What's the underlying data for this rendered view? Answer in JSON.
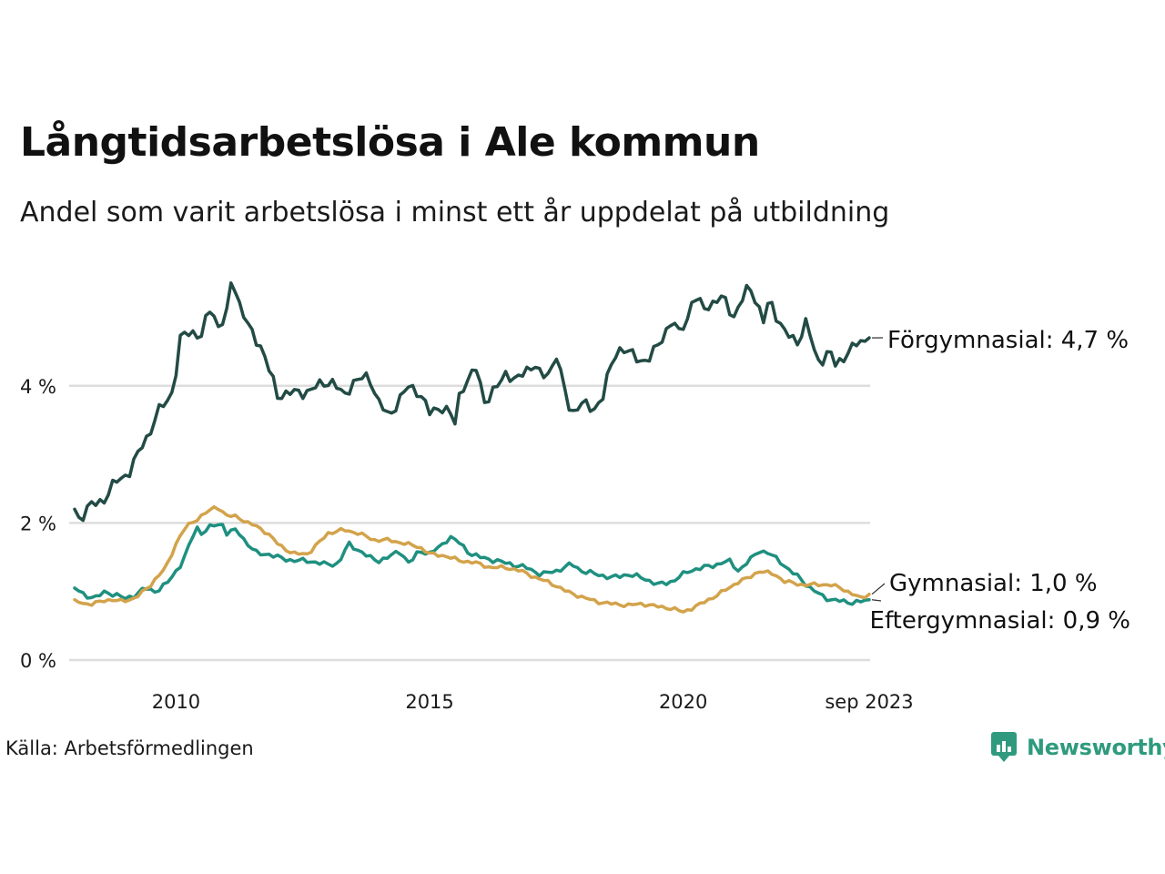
{
  "title": "Långtidsarbetslösa i Ale kommun",
  "subtitle": "Andel som varit arbetslösa i minst ett år uppdelat på utbildning",
  "source": "Källa: Arbetsförmedlingen",
  "brand": {
    "name": "Newsworthy",
    "icon": "bar-chart-speech-icon",
    "color": "#2f9a7e"
  },
  "chart_data": {
    "type": "line",
    "title": "Långtidsarbetslösa i Ale kommun",
    "xlabel": "",
    "ylabel": "",
    "x_start": 2008.0,
    "x_end": 2023.6667,
    "ylim": [
      0,
      6
    ],
    "y_ticks": [
      {
        "value": 0,
        "label": "0 %"
      },
      {
        "value": 2,
        "label": "2 %"
      },
      {
        "value": 4,
        "label": "4 %"
      }
    ],
    "x_ticks": [
      {
        "value": 2010,
        "label": "2010"
      },
      {
        "value": 2015,
        "label": "2015"
      },
      {
        "value": 2020,
        "label": "2020"
      },
      {
        "value": 2023.6667,
        "label": "sep 2023"
      }
    ],
    "grid": true,
    "series": [
      {
        "name": "Förgymnasial",
        "end_label": "Förgymnasial: 4,7 %",
        "color": "#234b45",
        "anchors": [
          [
            2008.0,
            2.2
          ],
          [
            2008.1,
            2.05
          ],
          [
            2008.3,
            2.25
          ],
          [
            2008.6,
            2.35
          ],
          [
            2008.8,
            2.6
          ],
          [
            2009.1,
            2.75
          ],
          [
            2009.3,
            3.1
          ],
          [
            2009.5,
            3.35
          ],
          [
            2009.7,
            3.7
          ],
          [
            2009.9,
            3.85
          ],
          [
            2010.0,
            4.2
          ],
          [
            2010.1,
            4.75
          ],
          [
            2010.3,
            4.8
          ],
          [
            2010.5,
            4.7
          ],
          [
            2010.6,
            5.0
          ],
          [
            2010.7,
            5.2
          ],
          [
            2010.8,
            4.85
          ],
          [
            2010.9,
            4.9
          ],
          [
            2011.0,
            5.05
          ],
          [
            2011.1,
            5.6
          ],
          [
            2011.25,
            5.2
          ],
          [
            2011.4,
            4.9
          ],
          [
            2011.55,
            4.7
          ],
          [
            2011.7,
            4.55
          ],
          [
            2011.8,
            4.3
          ],
          [
            2011.9,
            4.1
          ],
          [
            2012.0,
            3.85
          ],
          [
            2012.2,
            3.9
          ],
          [
            2012.5,
            3.9
          ],
          [
            2012.7,
            3.95
          ],
          [
            2012.9,
            4.05
          ],
          [
            2013.1,
            4.05
          ],
          [
            2013.3,
            3.85
          ],
          [
            2013.5,
            4.05
          ],
          [
            2013.8,
            4.15
          ],
          [
            2014.0,
            3.75
          ],
          [
            2014.2,
            3.55
          ],
          [
            2014.4,
            3.8
          ],
          [
            2014.6,
            4.0
          ],
          [
            2014.8,
            3.9
          ],
          [
            2015.0,
            3.6
          ],
          [
            2015.2,
            3.7
          ],
          [
            2015.4,
            3.6
          ],
          [
            2015.5,
            3.45
          ],
          [
            2015.6,
            3.95
          ],
          [
            2015.8,
            4.1
          ],
          [
            2015.9,
            4.3
          ],
          [
            2016.1,
            3.75
          ],
          [
            2016.3,
            3.95
          ],
          [
            2016.5,
            4.2
          ],
          [
            2016.7,
            4.05
          ],
          [
            2016.9,
            4.25
          ],
          [
            2017.1,
            4.3
          ],
          [
            2017.2,
            4.1
          ],
          [
            2017.4,
            4.25
          ],
          [
            2017.5,
            4.45
          ],
          [
            2017.7,
            3.8
          ],
          [
            2017.8,
            3.6
          ],
          [
            2018.0,
            3.75
          ],
          [
            2018.2,
            3.65
          ],
          [
            2018.4,
            3.8
          ],
          [
            2018.5,
            4.1
          ],
          [
            2018.7,
            4.55
          ],
          [
            2018.9,
            4.5
          ],
          [
            2019.1,
            4.4
          ],
          [
            2019.3,
            4.35
          ],
          [
            2019.5,
            4.6
          ],
          [
            2019.7,
            4.85
          ],
          [
            2019.8,
            4.95
          ],
          [
            2019.9,
            4.75
          ],
          [
            2020.0,
            4.9
          ],
          [
            2020.1,
            5.0
          ],
          [
            2020.2,
            5.3
          ],
          [
            2020.4,
            5.15
          ],
          [
            2020.6,
            5.2
          ],
          [
            2020.8,
            5.3
          ],
          [
            2021.0,
            5.0
          ],
          [
            2021.2,
            5.3
          ],
          [
            2021.3,
            5.5
          ],
          [
            2021.5,
            5.1
          ],
          [
            2021.6,
            4.9
          ],
          [
            2021.7,
            5.3
          ],
          [
            2021.9,
            4.9
          ],
          [
            2022.1,
            4.7
          ],
          [
            2022.3,
            4.65
          ],
          [
            2022.4,
            4.95
          ],
          [
            2022.5,
            4.75
          ],
          [
            2022.6,
            4.45
          ],
          [
            2022.7,
            4.35
          ],
          [
            2022.9,
            4.5
          ],
          [
            2023.0,
            4.3
          ],
          [
            2023.2,
            4.45
          ],
          [
            2023.4,
            4.6
          ],
          [
            2023.6667,
            4.7
          ]
        ]
      },
      {
        "name": "Gymnasial",
        "end_label": "Gymnasial: 1,0 %",
        "color": "#d3a34b",
        "anchors": [
          [
            2008.0,
            0.88
          ],
          [
            2008.3,
            0.8
          ],
          [
            2008.6,
            0.88
          ],
          [
            2008.9,
            0.86
          ],
          [
            2009.2,
            0.9
          ],
          [
            2009.5,
            1.1
          ],
          [
            2009.8,
            1.35
          ],
          [
            2010.0,
            1.7
          ],
          [
            2010.2,
            1.95
          ],
          [
            2010.4,
            2.05
          ],
          [
            2010.6,
            2.15
          ],
          [
            2010.8,
            2.25
          ],
          [
            2011.0,
            2.1
          ],
          [
            2011.2,
            2.1
          ],
          [
            2011.4,
            2.0
          ],
          [
            2011.6,
            1.95
          ],
          [
            2011.8,
            1.85
          ],
          [
            2012.0,
            1.7
          ],
          [
            2012.3,
            1.55
          ],
          [
            2012.6,
            1.55
          ],
          [
            2012.8,
            1.7
          ],
          [
            2013.0,
            1.85
          ],
          [
            2013.3,
            1.9
          ],
          [
            2013.6,
            1.85
          ],
          [
            2013.9,
            1.75
          ],
          [
            2014.2,
            1.75
          ],
          [
            2014.5,
            1.7
          ],
          [
            2014.8,
            1.65
          ],
          [
            2015.0,
            1.55
          ],
          [
            2015.3,
            1.52
          ],
          [
            2015.6,
            1.45
          ],
          [
            2015.9,
            1.42
          ],
          [
            2016.2,
            1.35
          ],
          [
            2016.5,
            1.35
          ],
          [
            2016.8,
            1.3
          ],
          [
            2017.1,
            1.2
          ],
          [
            2017.4,
            1.12
          ],
          [
            2017.7,
            1.0
          ],
          [
            2018.0,
            0.92
          ],
          [
            2018.3,
            0.85
          ],
          [
            2018.6,
            0.82
          ],
          [
            2018.9,
            0.8
          ],
          [
            2019.2,
            0.82
          ],
          [
            2019.5,
            0.78
          ],
          [
            2019.8,
            0.75
          ],
          [
            2020.0,
            0.7
          ],
          [
            2020.3,
            0.8
          ],
          [
            2020.6,
            0.92
          ],
          [
            2020.9,
            1.05
          ],
          [
            2021.1,
            1.15
          ],
          [
            2021.3,
            1.2
          ],
          [
            2021.5,
            1.3
          ],
          [
            2021.8,
            1.25
          ],
          [
            2022.0,
            1.15
          ],
          [
            2022.3,
            1.1
          ],
          [
            2022.6,
            1.1
          ],
          [
            2022.9,
            1.1
          ],
          [
            2023.1,
            1.05
          ],
          [
            2023.3,
            0.98
          ],
          [
            2023.5,
            0.9
          ],
          [
            2023.6667,
            0.96
          ]
        ]
      },
      {
        "name": "Eftergymnasial",
        "end_label": "Eftergymnasial: 0,9 %",
        "color": "#1f9080",
        "anchors": [
          [
            2008.0,
            1.05
          ],
          [
            2008.2,
            0.95
          ],
          [
            2008.4,
            0.9
          ],
          [
            2008.6,
            1.0
          ],
          [
            2008.8,
            0.95
          ],
          [
            2009.0,
            0.9
          ],
          [
            2009.2,
            0.95
          ],
          [
            2009.4,
            1.05
          ],
          [
            2009.6,
            1.0
          ],
          [
            2009.8,
            1.1
          ],
          [
            2010.0,
            1.3
          ],
          [
            2010.1,
            1.4
          ],
          [
            2010.2,
            1.55
          ],
          [
            2010.3,
            1.75
          ],
          [
            2010.4,
            1.95
          ],
          [
            2010.5,
            1.85
          ],
          [
            2010.7,
            1.95
          ],
          [
            2010.9,
            2.0
          ],
          [
            2011.0,
            1.85
          ],
          [
            2011.2,
            1.9
          ],
          [
            2011.4,
            1.7
          ],
          [
            2011.6,
            1.55
          ],
          [
            2011.8,
            1.55
          ],
          [
            2012.0,
            1.5
          ],
          [
            2012.3,
            1.45
          ],
          [
            2012.6,
            1.45
          ],
          [
            2012.9,
            1.4
          ],
          [
            2013.2,
            1.4
          ],
          [
            2013.4,
            1.7
          ],
          [
            2013.6,
            1.6
          ],
          [
            2013.8,
            1.5
          ],
          [
            2014.0,
            1.45
          ],
          [
            2014.2,
            1.5
          ],
          [
            2014.4,
            1.6
          ],
          [
            2014.6,
            1.4
          ],
          [
            2014.8,
            1.6
          ],
          [
            2015.0,
            1.55
          ],
          [
            2015.2,
            1.65
          ],
          [
            2015.4,
            1.8
          ],
          [
            2015.6,
            1.7
          ],
          [
            2015.8,
            1.55
          ],
          [
            2016.0,
            1.5
          ],
          [
            2016.3,
            1.45
          ],
          [
            2016.6,
            1.4
          ],
          [
            2016.9,
            1.35
          ],
          [
            2017.2,
            1.25
          ],
          [
            2017.5,
            1.3
          ],
          [
            2017.8,
            1.4
          ],
          [
            2018.0,
            1.3
          ],
          [
            2018.3,
            1.25
          ],
          [
            2018.6,
            1.2
          ],
          [
            2018.9,
            1.25
          ],
          [
            2019.2,
            1.2
          ],
          [
            2019.5,
            1.1
          ],
          [
            2019.8,
            1.15
          ],
          [
            2020.1,
            1.3
          ],
          [
            2020.4,
            1.35
          ],
          [
            2020.7,
            1.4
          ],
          [
            2020.9,
            1.45
          ],
          [
            2021.1,
            1.3
          ],
          [
            2021.3,
            1.45
          ],
          [
            2021.5,
            1.6
          ],
          [
            2021.7,
            1.55
          ],
          [
            2021.9,
            1.45
          ],
          [
            2022.1,
            1.3
          ],
          [
            2022.3,
            1.2
          ],
          [
            2022.5,
            1.05
          ],
          [
            2022.7,
            0.95
          ],
          [
            2022.9,
            0.88
          ],
          [
            2023.1,
            0.86
          ],
          [
            2023.3,
            0.84
          ],
          [
            2023.5,
            0.85
          ],
          [
            2023.6667,
            0.88
          ]
        ]
      }
    ]
  }
}
